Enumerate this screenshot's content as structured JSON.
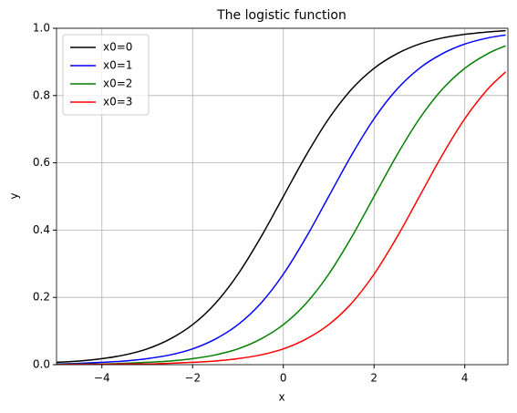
{
  "chart_data": {
    "type": "line",
    "title": "The logistic function",
    "x_label": "x",
    "y_label": "y",
    "x": [
      -5,
      -4.5,
      -4,
      -3.5,
      -3,
      -2.5,
      -2,
      -1.5,
      -1,
      -0.5,
      0,
      0.5,
      1,
      1.5,
      2,
      2.5,
      3,
      3.5,
      4,
      4.5,
      4.9
    ],
    "series": [
      {
        "name": "x0=0",
        "color": "#000000",
        "values": [
          0.007,
          0.011,
          0.018,
          0.029,
          0.047,
          0.076,
          0.119,
          0.182,
          0.269,
          0.378,
          0.5,
          0.622,
          0.731,
          0.818,
          0.881,
          0.924,
          0.953,
          0.971,
          0.982,
          0.989,
          0.993
        ]
      },
      {
        "name": "x0=1",
        "color": "#0000ff",
        "values": [
          0.002,
          0.004,
          0.007,
          0.011,
          0.018,
          0.029,
          0.047,
          0.076,
          0.119,
          0.182,
          0.269,
          0.378,
          0.5,
          0.622,
          0.731,
          0.818,
          0.881,
          0.924,
          0.953,
          0.971,
          0.98
        ]
      },
      {
        "name": "x0=2",
        "color": "#008000",
        "values": [
          0.001,
          0.002,
          0.002,
          0.004,
          0.007,
          0.011,
          0.018,
          0.029,
          0.047,
          0.076,
          0.119,
          0.182,
          0.269,
          0.378,
          0.5,
          0.622,
          0.731,
          0.818,
          0.881,
          0.924,
          0.948
        ]
      },
      {
        "name": "x0=3",
        "color": "#ff0000",
        "values": [
          0,
          0.001,
          0.001,
          0.002,
          0.002,
          0.004,
          0.007,
          0.011,
          0.018,
          0.029,
          0.047,
          0.076,
          0.119,
          0.182,
          0.269,
          0.378,
          0.5,
          0.622,
          0.731,
          0.818,
          0.87
        ]
      }
    ],
    "xlim": [
      -5,
      4.95
    ],
    "ylim": [
      0,
      1
    ],
    "xticks": [
      {
        "value": -4,
        "label": "−4"
      },
      {
        "value": -2,
        "label": "−2"
      },
      0,
      2,
      4
    ],
    "yticks": [
      {
        "value": 0,
        "label": "0.0"
      },
      {
        "value": 0.2,
        "label": "0.2"
      },
      {
        "value": 0.4,
        "label": "0.4"
      },
      {
        "value": 0.6,
        "label": "0.6"
      },
      {
        "value": 0.8,
        "label": "0.8"
      },
      {
        "value": 1,
        "label": "1.0"
      }
    ],
    "grid": true,
    "legend": "upper left"
  }
}
